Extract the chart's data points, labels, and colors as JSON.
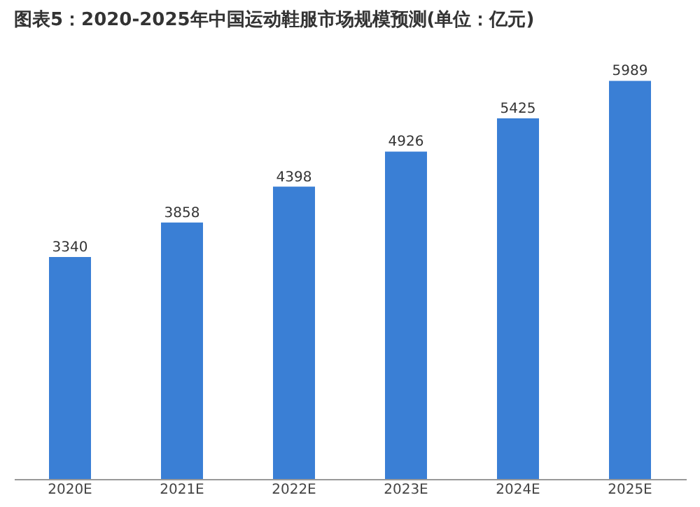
{
  "chart_data": {
    "type": "bar",
    "title": "图表5：2020-2025年中国运动鞋服市场规模预测(单位：亿元)",
    "categories": [
      "2020E",
      "2021E",
      "2022E",
      "2023E",
      "2024E",
      "2025E"
    ],
    "values": [
      3340,
      3858,
      4398,
      4926,
      5425,
      5989
    ],
    "color": "#3a7fd5",
    "data_labels": true
  }
}
